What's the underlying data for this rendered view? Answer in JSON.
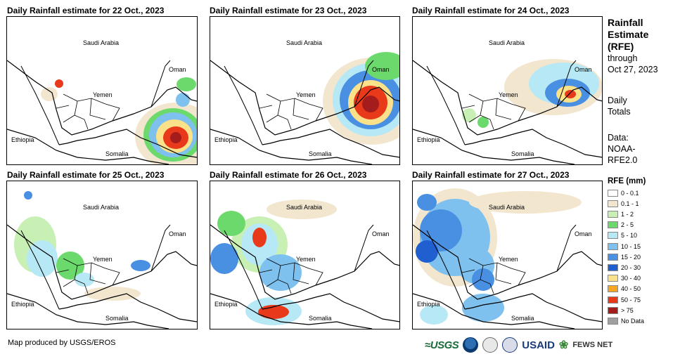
{
  "panels": [
    {
      "title": "Daily Rainfall estimate for 22 Oct., 2023"
    },
    {
      "title": "Daily Rainfall estimate for 23 Oct., 2023"
    },
    {
      "title": "Daily Rainfall estimate for 24 Oct., 2023"
    },
    {
      "title": "Daily Rainfall estimate for 25 Oct., 2023"
    },
    {
      "title": "Daily Rainfall estimate for 26 Oct., 2023"
    },
    {
      "title": "Daily Rainfall estimate for 27 Oct., 2023"
    }
  ],
  "map_labels": {
    "saudi": "Saudi Arabia",
    "oman": "Oman",
    "yemen": "Yemen",
    "ethiopia": "Ethiopia",
    "somalia": "Somalia"
  },
  "sidebar": {
    "title_line1": "Rainfall",
    "title_line2": "Estimate",
    "title_line3": "(RFE)",
    "through": "through",
    "date": "Oct 27, 2023",
    "daily1": "Daily",
    "daily2": "Totals",
    "data1": "Data:",
    "data2": "NOAA-",
    "data3": "RFE2.0"
  },
  "legend": {
    "title": "RFE (mm)",
    "items": [
      {
        "label": "0 - 0.1",
        "color": "#ffffff"
      },
      {
        "label": "0.1 - 1",
        "color": "#f2e6cf"
      },
      {
        "label": "1 - 2",
        "color": "#c8f0b4"
      },
      {
        "label": "2 - 5",
        "color": "#6cd96c"
      },
      {
        "label": "5 - 10",
        "color": "#b7e8f5"
      },
      {
        "label": "10 - 15",
        "color": "#7ec0ee"
      },
      {
        "label": "15 - 20",
        "color": "#4a90e2"
      },
      {
        "label": "20 - 30",
        "color": "#1f5fd0"
      },
      {
        "label": "30 - 40",
        "color": "#fbe28a"
      },
      {
        "label": "40 - 50",
        "color": "#f5a623"
      },
      {
        "label": "50 - 75",
        "color": "#e8391b"
      },
      {
        "label": "> 75",
        "color": "#a51c1c"
      },
      {
        "label": "No Data",
        "color": "#a0a0a0"
      }
    ]
  },
  "credit": "Map produced by USGS/EROS",
  "logos": {
    "usgs": "≈USGS",
    "usaid": "USAID",
    "fews": "FEWS NET"
  }
}
